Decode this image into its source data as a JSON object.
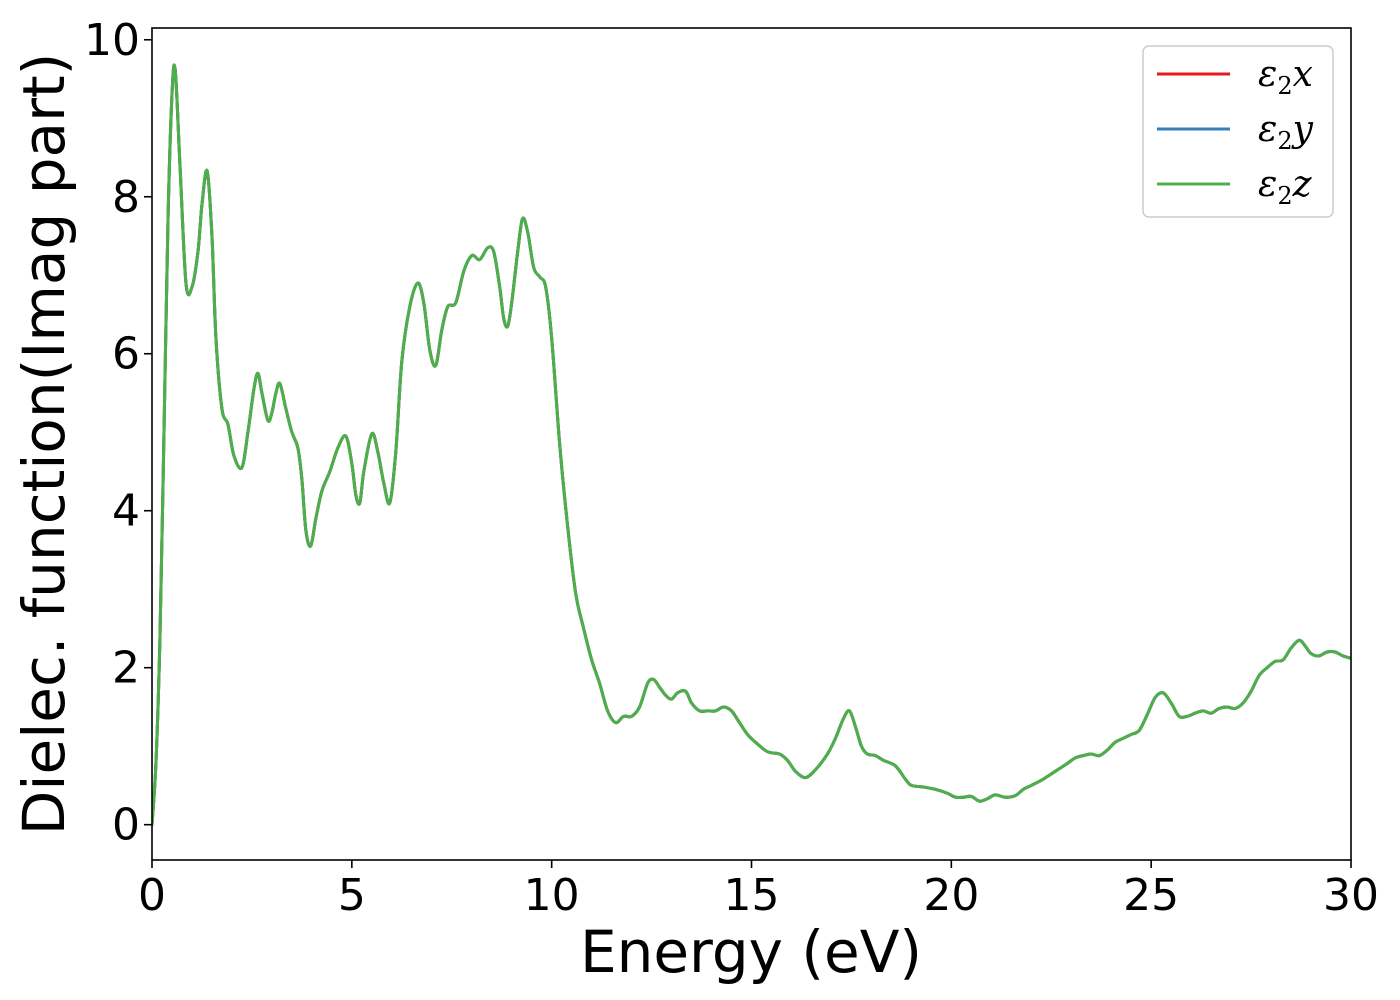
{
  "chart_data": {
    "type": "line",
    "title": "",
    "xlabel": "Energy (eV)",
    "ylabel": "Dielec. function(Imag part)",
    "xlim": [
      0,
      30
    ],
    "ylim": [
      -0.45,
      10.15
    ],
    "xticks": [
      0,
      5,
      10,
      15,
      20,
      25,
      30
    ],
    "yticks": [
      0,
      2,
      4,
      6,
      8,
      10
    ],
    "grid": false,
    "legend": "top-right",
    "series": [
      {
        "name": "ε2x",
        "color": "#e41a1c",
        "x": [
          0,
          0.1,
          0.2,
          0.3,
          0.4,
          0.5,
          0.58,
          0.7,
          0.85,
          1.0,
          1.15,
          1.25,
          1.38,
          1.5,
          1.6,
          1.75,
          1.9,
          2.05,
          2.25,
          2.4,
          2.55,
          2.65,
          2.75,
          2.9,
          3.0,
          3.1,
          3.2,
          3.35,
          3.5,
          3.65,
          3.75,
          3.85,
          3.97,
          4.1,
          4.25,
          4.45,
          4.65,
          4.85,
          5.0,
          5.1,
          5.2,
          5.3,
          5.5,
          5.65,
          5.8,
          5.95,
          6.1,
          6.25,
          6.45,
          6.65,
          6.8,
          6.95,
          7.1,
          7.25,
          7.4,
          7.6,
          7.8,
          8.0,
          8.2,
          8.4,
          8.55,
          8.7,
          8.8,
          8.9,
          9.0,
          9.15,
          9.27,
          9.4,
          9.55,
          9.7,
          9.85,
          10.0,
          10.2,
          10.4,
          10.6,
          10.8,
          11.0,
          11.2,
          11.4,
          11.6,
          11.8,
          12.0,
          12.2,
          12.4,
          12.55,
          12.7,
          12.85,
          13.0,
          13.15,
          13.35,
          13.5,
          13.7,
          13.9,
          14.1,
          14.3,
          14.5,
          14.7,
          14.9,
          15.1,
          15.4,
          15.7,
          15.9,
          16.1,
          16.35,
          16.6,
          16.9,
          17.1,
          17.3,
          17.45,
          17.6,
          17.75,
          17.9,
          18.1,
          18.3,
          18.6,
          18.85,
          19.0,
          19.3,
          19.6,
          19.9,
          20.1,
          20.3,
          20.5,
          20.7,
          20.9,
          21.1,
          21.35,
          21.6,
          21.8,
          22.0,
          22.3,
          22.6,
          22.9,
          23.1,
          23.3,
          23.5,
          23.7,
          23.9,
          24.1,
          24.3,
          24.5,
          24.7,
          24.9,
          25.1,
          25.3,
          25.5,
          25.7,
          25.9,
          26.1,
          26.3,
          26.5,
          26.7,
          26.9,
          27.1,
          27.3,
          27.5,
          27.7,
          27.9,
          28.1,
          28.3,
          28.5,
          28.7,
          28.85,
          29.0,
          29.2,
          29.4,
          29.6,
          29.8,
          30.0
        ],
        "y": [
          0.0,
          0.8,
          2.4,
          5.0,
          7.7,
          9.3,
          9.62,
          8.4,
          6.9,
          6.85,
          7.3,
          7.9,
          8.33,
          7.5,
          6.2,
          5.3,
          5.1,
          4.7,
          4.55,
          5.0,
          5.55,
          5.75,
          5.5,
          5.15,
          5.25,
          5.5,
          5.62,
          5.3,
          5.0,
          4.8,
          4.4,
          3.75,
          3.55,
          3.9,
          4.25,
          4.5,
          4.8,
          4.95,
          4.6,
          4.2,
          4.1,
          4.5,
          4.98,
          4.75,
          4.35,
          4.1,
          4.75,
          5.9,
          6.6,
          6.9,
          6.65,
          6.05,
          5.85,
          6.3,
          6.6,
          6.65,
          7.05,
          7.25,
          7.2,
          7.35,
          7.3,
          6.85,
          6.45,
          6.35,
          6.65,
          7.3,
          7.72,
          7.55,
          7.1,
          6.98,
          6.85,
          6.2,
          4.85,
          3.8,
          2.95,
          2.5,
          2.1,
          1.8,
          1.45,
          1.3,
          1.38,
          1.38,
          1.5,
          1.8,
          1.85,
          1.75,
          1.65,
          1.6,
          1.68,
          1.7,
          1.55,
          1.45,
          1.45,
          1.45,
          1.5,
          1.45,
          1.3,
          1.15,
          1.05,
          0.93,
          0.9,
          0.82,
          0.68,
          0.6,
          0.7,
          0.9,
          1.1,
          1.35,
          1.45,
          1.25,
          1.0,
          0.9,
          0.88,
          0.82,
          0.75,
          0.58,
          0.5,
          0.48,
          0.45,
          0.4,
          0.35,
          0.35,
          0.36,
          0.3,
          0.33,
          0.38,
          0.35,
          0.37,
          0.45,
          0.5,
          0.58,
          0.68,
          0.78,
          0.85,
          0.88,
          0.9,
          0.88,
          0.95,
          1.05,
          1.1,
          1.15,
          1.2,
          1.4,
          1.62,
          1.68,
          1.55,
          1.38,
          1.38,
          1.42,
          1.45,
          1.42,
          1.48,
          1.5,
          1.48,
          1.55,
          1.7,
          1.9,
          2.0,
          2.08,
          2.1,
          2.25,
          2.35,
          2.28,
          2.18,
          2.15,
          2.2,
          2.2,
          2.15,
          2.12
        ]
      },
      {
        "name": "ε2y",
        "color": "#377eb8",
        "x": [
          0,
          0.1,
          0.2,
          0.3,
          0.4,
          0.5,
          0.58,
          0.7,
          0.85,
          1.0,
          1.15,
          1.25,
          1.38,
          1.5,
          1.6,
          1.75,
          1.9,
          2.05,
          2.25,
          2.4,
          2.55,
          2.65,
          2.75,
          2.9,
          3.0,
          3.1,
          3.2,
          3.35,
          3.5,
          3.65,
          3.75,
          3.85,
          3.97,
          4.1,
          4.25,
          4.45,
          4.65,
          4.85,
          5.0,
          5.1,
          5.2,
          5.3,
          5.5,
          5.65,
          5.8,
          5.95,
          6.1,
          6.25,
          6.45,
          6.65,
          6.8,
          6.95,
          7.1,
          7.25,
          7.4,
          7.6,
          7.8,
          8.0,
          8.2,
          8.4,
          8.55,
          8.7,
          8.8,
          8.9,
          9.0,
          9.15,
          9.27,
          9.4,
          9.55,
          9.7,
          9.85,
          10.0,
          10.2,
          10.4,
          10.6,
          10.8,
          11.0,
          11.2,
          11.4,
          11.6,
          11.8,
          12.0,
          12.2,
          12.4,
          12.55,
          12.7,
          12.85,
          13.0,
          13.15,
          13.35,
          13.5,
          13.7,
          13.9,
          14.1,
          14.3,
          14.5,
          14.7,
          14.9,
          15.1,
          15.4,
          15.7,
          15.9,
          16.1,
          16.35,
          16.6,
          16.9,
          17.1,
          17.3,
          17.45,
          17.6,
          17.75,
          17.9,
          18.1,
          18.3,
          18.6,
          18.85,
          19.0,
          19.3,
          19.6,
          19.9,
          20.1,
          20.3,
          20.5,
          20.7,
          20.9,
          21.1,
          21.35,
          21.6,
          21.8,
          22.0,
          22.3,
          22.6,
          22.9,
          23.1,
          23.3,
          23.5,
          23.7,
          23.9,
          24.1,
          24.3,
          24.5,
          24.7,
          24.9,
          25.1,
          25.3,
          25.5,
          25.7,
          25.9,
          26.1,
          26.3,
          26.5,
          26.7,
          26.9,
          27.1,
          27.3,
          27.5,
          27.7,
          27.9,
          28.1,
          28.3,
          28.5,
          28.7,
          28.85,
          29.0,
          29.2,
          29.4,
          29.6,
          29.8,
          30.0
        ],
        "y": [
          0.0,
          0.8,
          2.4,
          5.0,
          7.7,
          9.3,
          9.62,
          8.4,
          6.9,
          6.85,
          7.3,
          7.9,
          8.33,
          7.5,
          6.2,
          5.3,
          5.1,
          4.7,
          4.55,
          5.0,
          5.55,
          5.75,
          5.5,
          5.15,
          5.25,
          5.5,
          5.62,
          5.3,
          5.0,
          4.8,
          4.4,
          3.75,
          3.55,
          3.9,
          4.25,
          4.5,
          4.8,
          4.95,
          4.6,
          4.2,
          4.1,
          4.5,
          4.98,
          4.75,
          4.35,
          4.1,
          4.75,
          5.9,
          6.6,
          6.9,
          6.65,
          6.05,
          5.85,
          6.3,
          6.6,
          6.65,
          7.05,
          7.25,
          7.2,
          7.35,
          7.3,
          6.85,
          6.45,
          6.35,
          6.65,
          7.3,
          7.72,
          7.55,
          7.1,
          6.98,
          6.85,
          6.2,
          4.85,
          3.8,
          2.95,
          2.5,
          2.1,
          1.8,
          1.45,
          1.3,
          1.38,
          1.38,
          1.5,
          1.8,
          1.85,
          1.75,
          1.65,
          1.6,
          1.68,
          1.7,
          1.55,
          1.45,
          1.45,
          1.45,
          1.5,
          1.45,
          1.3,
          1.15,
          1.05,
          0.93,
          0.9,
          0.82,
          0.68,
          0.6,
          0.7,
          0.9,
          1.1,
          1.35,
          1.45,
          1.25,
          1.0,
          0.9,
          0.88,
          0.82,
          0.75,
          0.58,
          0.5,
          0.48,
          0.45,
          0.4,
          0.35,
          0.35,
          0.36,
          0.3,
          0.33,
          0.38,
          0.35,
          0.37,
          0.45,
          0.5,
          0.58,
          0.68,
          0.78,
          0.85,
          0.88,
          0.9,
          0.88,
          0.95,
          1.05,
          1.1,
          1.15,
          1.2,
          1.4,
          1.62,
          1.68,
          1.55,
          1.38,
          1.38,
          1.42,
          1.45,
          1.42,
          1.48,
          1.5,
          1.48,
          1.55,
          1.7,
          1.9,
          2.0,
          2.08,
          2.1,
          2.25,
          2.35,
          2.28,
          2.18,
          2.15,
          2.2,
          2.2,
          2.15,
          2.12
        ]
      },
      {
        "name": "ε2z",
        "color": "#4daf4a",
        "x": [
          0,
          0.1,
          0.2,
          0.3,
          0.4,
          0.5,
          0.58,
          0.7,
          0.85,
          1.0,
          1.15,
          1.25,
          1.38,
          1.5,
          1.6,
          1.75,
          1.9,
          2.05,
          2.25,
          2.4,
          2.55,
          2.65,
          2.75,
          2.9,
          3.0,
          3.1,
          3.2,
          3.35,
          3.5,
          3.65,
          3.75,
          3.85,
          3.97,
          4.1,
          4.25,
          4.45,
          4.65,
          4.85,
          5.0,
          5.1,
          5.2,
          5.3,
          5.5,
          5.65,
          5.8,
          5.95,
          6.1,
          6.25,
          6.45,
          6.65,
          6.8,
          6.95,
          7.1,
          7.25,
          7.4,
          7.6,
          7.8,
          8.0,
          8.2,
          8.4,
          8.55,
          8.7,
          8.8,
          8.9,
          9.0,
          9.15,
          9.27,
          9.4,
          9.55,
          9.7,
          9.85,
          10.0,
          10.2,
          10.4,
          10.6,
          10.8,
          11.0,
          11.2,
          11.4,
          11.6,
          11.8,
          12.0,
          12.2,
          12.4,
          12.55,
          12.7,
          12.85,
          13.0,
          13.15,
          13.35,
          13.5,
          13.7,
          13.9,
          14.1,
          14.3,
          14.5,
          14.7,
          14.9,
          15.1,
          15.4,
          15.7,
          15.9,
          16.1,
          16.35,
          16.6,
          16.9,
          17.1,
          17.3,
          17.45,
          17.6,
          17.75,
          17.9,
          18.1,
          18.3,
          18.6,
          18.85,
          19.0,
          19.3,
          19.6,
          19.9,
          20.1,
          20.3,
          20.5,
          20.7,
          20.9,
          21.1,
          21.35,
          21.6,
          21.8,
          22.0,
          22.3,
          22.6,
          22.9,
          23.1,
          23.3,
          23.5,
          23.7,
          23.9,
          24.1,
          24.3,
          24.5,
          24.7,
          24.9,
          25.1,
          25.3,
          25.5,
          25.7,
          25.9,
          26.1,
          26.3,
          26.5,
          26.7,
          26.9,
          27.1,
          27.3,
          27.5,
          27.7,
          27.9,
          28.1,
          28.3,
          28.5,
          28.7,
          28.85,
          29.0,
          29.2,
          29.4,
          29.6,
          29.8,
          30.0
        ],
        "y": [
          0.0,
          0.8,
          2.4,
          5.0,
          7.7,
          9.3,
          9.62,
          8.4,
          6.9,
          6.85,
          7.3,
          7.9,
          8.33,
          7.5,
          6.2,
          5.3,
          5.1,
          4.7,
          4.55,
          5.0,
          5.55,
          5.75,
          5.5,
          5.15,
          5.25,
          5.5,
          5.62,
          5.3,
          5.0,
          4.8,
          4.4,
          3.75,
          3.55,
          3.9,
          4.25,
          4.5,
          4.8,
          4.95,
          4.6,
          4.2,
          4.1,
          4.5,
          4.98,
          4.75,
          4.35,
          4.1,
          4.75,
          5.9,
          6.6,
          6.9,
          6.65,
          6.05,
          5.85,
          6.3,
          6.6,
          6.65,
          7.05,
          7.25,
          7.2,
          7.35,
          7.3,
          6.85,
          6.45,
          6.35,
          6.65,
          7.3,
          7.72,
          7.55,
          7.1,
          6.98,
          6.85,
          6.2,
          4.85,
          3.8,
          2.95,
          2.5,
          2.1,
          1.8,
          1.45,
          1.3,
          1.38,
          1.38,
          1.5,
          1.8,
          1.85,
          1.75,
          1.65,
          1.6,
          1.68,
          1.7,
          1.55,
          1.45,
          1.45,
          1.45,
          1.5,
          1.45,
          1.3,
          1.15,
          1.05,
          0.93,
          0.9,
          0.82,
          0.68,
          0.6,
          0.7,
          0.9,
          1.1,
          1.35,
          1.45,
          1.25,
          1.0,
          0.9,
          0.88,
          0.82,
          0.75,
          0.58,
          0.5,
          0.48,
          0.45,
          0.4,
          0.35,
          0.35,
          0.36,
          0.3,
          0.33,
          0.38,
          0.35,
          0.37,
          0.45,
          0.5,
          0.58,
          0.68,
          0.78,
          0.85,
          0.88,
          0.9,
          0.88,
          0.95,
          1.05,
          1.1,
          1.15,
          1.2,
          1.4,
          1.62,
          1.68,
          1.55,
          1.38,
          1.38,
          1.42,
          1.45,
          1.42,
          1.48,
          1.5,
          1.48,
          1.55,
          1.7,
          1.9,
          2.0,
          2.08,
          2.1,
          2.25,
          2.35,
          2.28,
          2.18,
          2.15,
          2.2,
          2.2,
          2.15,
          2.12
        ]
      }
    ]
  }
}
